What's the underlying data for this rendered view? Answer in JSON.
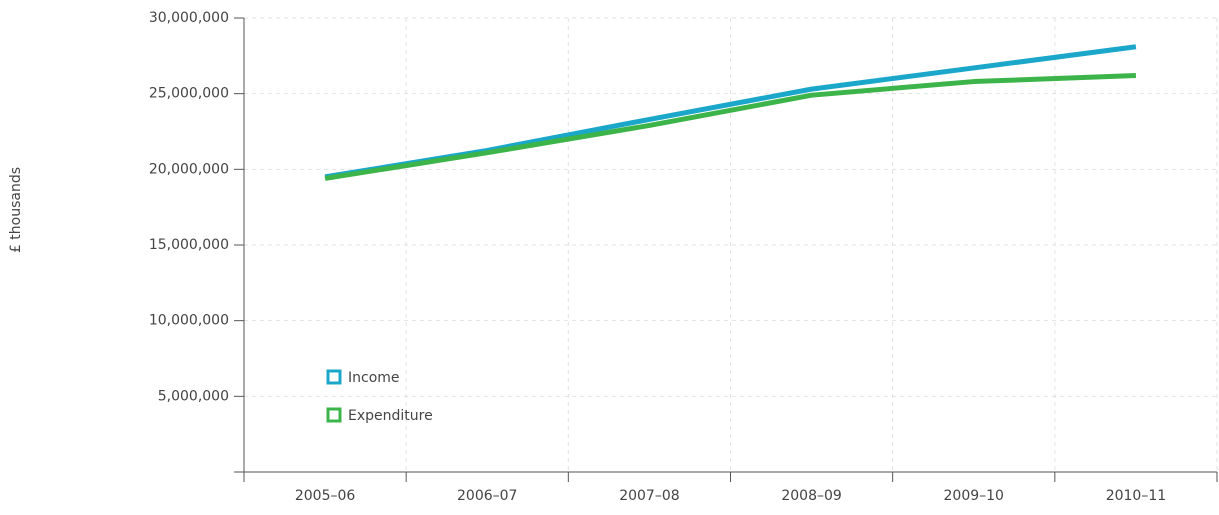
{
  "chart_data": {
    "type": "line",
    "y_label": "£ thousands",
    "categories": [
      "2005–06",
      "2006–07",
      "2007–08",
      "2008–09",
      "2009–10",
      "2010–11"
    ],
    "series": [
      {
        "name": "Income",
        "color": "#1aa7c9",
        "values": [
          19500000,
          21250000,
          23300000,
          25300000,
          26700000,
          28100000
        ]
      },
      {
        "name": "Expenditure",
        "color": "#3cb44a",
        "values": [
          19400000,
          21100000,
          22900000,
          24900000,
          25800000,
          26200000
        ]
      }
    ],
    "ylim": [
      0,
      30000000
    ],
    "yticks": [
      {
        "value": 5000000,
        "label": "5,000,000"
      },
      {
        "value": 10000000,
        "label": "10,000,000"
      },
      {
        "value": 15000000,
        "label": "15,000,000"
      },
      {
        "value": 20000000,
        "label": "20,000,000"
      },
      {
        "value": 25000000,
        "label": "25,000,000"
      },
      {
        "value": 30000000,
        "label": "30,000,000"
      }
    ],
    "grid": true,
    "legend": "lower left"
  }
}
